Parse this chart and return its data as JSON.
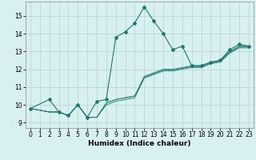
{
  "xlabel": "Humidex (Indice chaleur)",
  "ylabel": "",
  "bg_color": "#d8f0f0",
  "grid_color": "#b8d8d8",
  "line_color": "#1a7a6e",
  "xlim": [
    -0.5,
    23.5
  ],
  "ylim": [
    8.7,
    15.8
  ],
  "yticks": [
    9,
    10,
    11,
    12,
    13,
    14,
    15
  ],
  "xticks": [
    0,
    1,
    2,
    3,
    4,
    5,
    6,
    7,
    8,
    9,
    10,
    11,
    12,
    13,
    14,
    15,
    16,
    17,
    18,
    19,
    20,
    21,
    22,
    23
  ],
  "series1_x": [
    0,
    2,
    3,
    4,
    5,
    6,
    7,
    8,
    9,
    10,
    11,
    12,
    13,
    14,
    15,
    16,
    17,
    18,
    19,
    20,
    21,
    22,
    23
  ],
  "series1_y": [
    9.8,
    10.3,
    9.6,
    9.4,
    10.0,
    9.3,
    10.2,
    10.3,
    13.8,
    14.1,
    14.6,
    15.5,
    14.7,
    14.0,
    13.1,
    13.3,
    12.2,
    12.2,
    12.4,
    12.5,
    13.1,
    13.4,
    13.3
  ],
  "series2_x": [
    0,
    2,
    3,
    4,
    5,
    6,
    7,
    8,
    9,
    10,
    11,
    12,
    13,
    14,
    15,
    16,
    17,
    18,
    19,
    20,
    21,
    22,
    23
  ],
  "series2_y": [
    9.8,
    9.6,
    9.6,
    9.4,
    10.0,
    9.3,
    9.3,
    10.1,
    10.3,
    10.4,
    10.5,
    11.6,
    11.8,
    12.0,
    12.0,
    12.1,
    12.2,
    12.2,
    12.4,
    12.5,
    13.0,
    13.3,
    13.3
  ],
  "series3_x": [
    0,
    2,
    3,
    4,
    5,
    6,
    7,
    8,
    9,
    10,
    11,
    12,
    13,
    14,
    15,
    16,
    17,
    18,
    19,
    20,
    21,
    22,
    23
  ],
  "series3_y": [
    9.8,
    9.6,
    9.6,
    9.4,
    10.0,
    9.3,
    9.3,
    10.1,
    10.3,
    10.4,
    10.5,
    11.55,
    11.75,
    11.95,
    11.95,
    12.05,
    12.15,
    12.15,
    12.35,
    12.45,
    12.95,
    13.25,
    13.25
  ],
  "series4_x": [
    0,
    2,
    3,
    4,
    5,
    6,
    7,
    8,
    9,
    10,
    11,
    12,
    13,
    14,
    15,
    16,
    17,
    18,
    19,
    20,
    21,
    22,
    23
  ],
  "series4_y": [
    9.8,
    9.6,
    9.6,
    9.4,
    10.0,
    9.3,
    9.3,
    10.0,
    10.2,
    10.3,
    10.4,
    11.5,
    11.7,
    11.9,
    11.9,
    12.0,
    12.1,
    12.1,
    12.3,
    12.4,
    12.9,
    13.2,
    13.2
  ]
}
